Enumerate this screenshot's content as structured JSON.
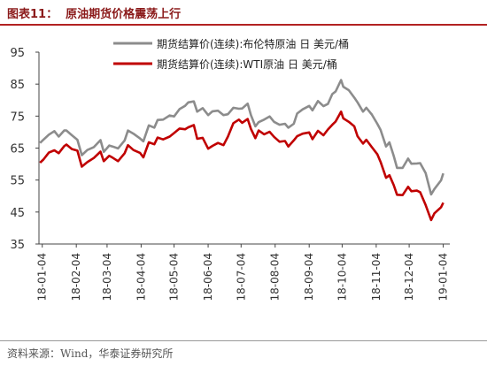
{
  "header": {
    "figure_label": "图表11：",
    "title": "原油期货价格震荡上行"
  },
  "footer": {
    "source": "资料来源：Wind，华泰证券研究所"
  },
  "colors": {
    "brent": "#8c8c8c",
    "wti": "#c00000",
    "title": "#8b1a1a",
    "rule": "#b22222"
  },
  "chart_data": {
    "type": "line",
    "title": "",
    "xlabel": "",
    "ylabel": "",
    "ylim": [
      35,
      95
    ],
    "yticks": [
      35,
      45,
      55,
      65,
      75,
      85,
      95
    ],
    "xlim": [
      "2018-01-01",
      "2019-01-10"
    ],
    "xticks": [
      {
        "date": "2018-01-04",
        "label": "18-01-04"
      },
      {
        "date": "2018-02-04",
        "label": "18-02-04"
      },
      {
        "date": "2018-03-04",
        "label": "18-03-04"
      },
      {
        "date": "2018-04-04",
        "label": "18-04-04"
      },
      {
        "date": "2018-05-04",
        "label": "18-05-04"
      },
      {
        "date": "2018-06-04",
        "label": "18-06-04"
      },
      {
        "date": "2018-07-04",
        "label": "18-07-04"
      },
      {
        "date": "2018-08-04",
        "label": "18-08-04"
      },
      {
        "date": "2018-09-04",
        "label": "18-09-04"
      },
      {
        "date": "2018-10-04",
        "label": "18-10-04"
      },
      {
        "date": "2018-11-04",
        "label": "18-11-04"
      },
      {
        "date": "2018-12-04",
        "label": "18-12-04"
      },
      {
        "date": "2019-01-04",
        "label": "19-01-04"
      }
    ],
    "grid": false,
    "legend_position": "top",
    "series": [
      {
        "name": "期货结算价(连续):布伦特原油 日 美元/桶",
        "points": [
          [
            "2018-01-02",
            66.6
          ],
          [
            "2018-01-05",
            67.6
          ],
          [
            "2018-01-10",
            69.2
          ],
          [
            "2018-01-15",
            70.3
          ],
          [
            "2018-01-19",
            68.6
          ],
          [
            "2018-01-24",
            70.5
          ],
          [
            "2018-01-26",
            70.5
          ],
          [
            "2018-01-31",
            69.0
          ],
          [
            "2018-02-05",
            67.6
          ],
          [
            "2018-02-09",
            62.8
          ],
          [
            "2018-02-14",
            64.4
          ],
          [
            "2018-02-20",
            65.3
          ],
          [
            "2018-02-26",
            67.5
          ],
          [
            "2018-03-01",
            63.8
          ],
          [
            "2018-03-06",
            65.8
          ],
          [
            "2018-03-09",
            65.5
          ],
          [
            "2018-03-14",
            64.9
          ],
          [
            "2018-03-20",
            67.4
          ],
          [
            "2018-03-23",
            70.5
          ],
          [
            "2018-03-28",
            69.5
          ],
          [
            "2018-04-03",
            68.0
          ],
          [
            "2018-04-06",
            67.1
          ],
          [
            "2018-04-11",
            72.1
          ],
          [
            "2018-04-16",
            71.4
          ],
          [
            "2018-04-19",
            73.8
          ],
          [
            "2018-04-24",
            73.9
          ],
          [
            "2018-04-30",
            75.2
          ],
          [
            "2018-05-04",
            74.9
          ],
          [
            "2018-05-09",
            77.2
          ],
          [
            "2018-05-14",
            78.2
          ],
          [
            "2018-05-17",
            79.3
          ],
          [
            "2018-05-22",
            79.6
          ],
          [
            "2018-05-25",
            76.4
          ],
          [
            "2018-05-30",
            77.5
          ],
          [
            "2018-06-04",
            75.3
          ],
          [
            "2018-06-08",
            76.5
          ],
          [
            "2018-06-13",
            76.7
          ],
          [
            "2018-06-18",
            75.3
          ],
          [
            "2018-06-22",
            75.6
          ],
          [
            "2018-06-27",
            77.6
          ],
          [
            "2018-07-02",
            77.3
          ],
          [
            "2018-07-05",
            77.4
          ],
          [
            "2018-07-10",
            78.9
          ],
          [
            "2018-07-13",
            75.3
          ],
          [
            "2018-07-17",
            71.8
          ],
          [
            "2018-07-20",
            73.1
          ],
          [
            "2018-07-25",
            73.9
          ],
          [
            "2018-07-30",
            74.9
          ],
          [
            "2018-08-03",
            73.2
          ],
          [
            "2018-08-08",
            72.3
          ],
          [
            "2018-08-13",
            72.6
          ],
          [
            "2018-08-16",
            71.4
          ],
          [
            "2018-08-21",
            72.6
          ],
          [
            "2018-08-24",
            75.8
          ],
          [
            "2018-08-29",
            77.1
          ],
          [
            "2018-09-04",
            78.2
          ],
          [
            "2018-09-07",
            76.8
          ],
          [
            "2018-09-12",
            79.7
          ],
          [
            "2018-09-17",
            78.1
          ],
          [
            "2018-09-21",
            78.8
          ],
          [
            "2018-09-25",
            81.9
          ],
          [
            "2018-09-28",
            82.7
          ],
          [
            "2018-10-03",
            86.3
          ],
          [
            "2018-10-05",
            84.2
          ],
          [
            "2018-10-10",
            83.1
          ],
          [
            "2018-10-15",
            80.8
          ],
          [
            "2018-10-18",
            79.3
          ],
          [
            "2018-10-23",
            76.4
          ],
          [
            "2018-10-26",
            77.6
          ],
          [
            "2018-10-31",
            75.5
          ],
          [
            "2018-11-05",
            72.6
          ],
          [
            "2018-11-08",
            70.7
          ],
          [
            "2018-11-13",
            65.5
          ],
          [
            "2018-11-16",
            66.8
          ],
          [
            "2018-11-20",
            62.5
          ],
          [
            "2018-11-23",
            58.8
          ],
          [
            "2018-11-28",
            58.8
          ],
          [
            "2018-12-03",
            61.7
          ],
          [
            "2018-12-06",
            60.1
          ],
          [
            "2018-12-11",
            60.2
          ],
          [
            "2018-12-14",
            60.3
          ],
          [
            "2018-12-19",
            57.2
          ],
          [
            "2018-12-24",
            50.5
          ],
          [
            "2018-12-27",
            52.2
          ],
          [
            "2019-01-02",
            54.9
          ],
          [
            "2019-01-04",
            57.1
          ]
        ]
      },
      {
        "name": "期货结算价(连续):WTI原油 日 美元/桶",
        "points": [
          [
            "2018-01-02",
            60.4
          ],
          [
            "2018-01-05",
            61.4
          ],
          [
            "2018-01-10",
            63.6
          ],
          [
            "2018-01-15",
            64.3
          ],
          [
            "2018-01-19",
            63.4
          ],
          [
            "2018-01-24",
            65.6
          ],
          [
            "2018-01-26",
            66.1
          ],
          [
            "2018-01-31",
            64.7
          ],
          [
            "2018-02-05",
            64.2
          ],
          [
            "2018-02-09",
            59.2
          ],
          [
            "2018-02-14",
            60.6
          ],
          [
            "2018-02-20",
            61.9
          ],
          [
            "2018-02-26",
            63.9
          ],
          [
            "2018-03-01",
            60.9
          ],
          [
            "2018-03-06",
            62.6
          ],
          [
            "2018-03-09",
            62.0
          ],
          [
            "2018-03-14",
            60.9
          ],
          [
            "2018-03-20",
            63.4
          ],
          [
            "2018-03-23",
            65.9
          ],
          [
            "2018-03-28",
            64.4
          ],
          [
            "2018-04-03",
            63.5
          ],
          [
            "2018-04-06",
            62.1
          ],
          [
            "2018-04-11",
            66.8
          ],
          [
            "2018-04-16",
            66.2
          ],
          [
            "2018-04-19",
            68.3
          ],
          [
            "2018-04-24",
            67.7
          ],
          [
            "2018-04-30",
            68.6
          ],
          [
            "2018-05-04",
            69.7
          ],
          [
            "2018-05-09",
            71.1
          ],
          [
            "2018-05-14",
            70.9
          ],
          [
            "2018-05-17",
            71.5
          ],
          [
            "2018-05-22",
            72.2
          ],
          [
            "2018-05-25",
            67.9
          ],
          [
            "2018-05-30",
            68.2
          ],
          [
            "2018-06-04",
            64.8
          ],
          [
            "2018-06-08",
            65.7
          ],
          [
            "2018-06-13",
            66.6
          ],
          [
            "2018-06-18",
            65.9
          ],
          [
            "2018-06-22",
            68.6
          ],
          [
            "2018-06-27",
            72.8
          ],
          [
            "2018-07-02",
            73.9
          ],
          [
            "2018-07-05",
            72.9
          ],
          [
            "2018-07-10",
            74.1
          ],
          [
            "2018-07-13",
            71.0
          ],
          [
            "2018-07-17",
            68.1
          ],
          [
            "2018-07-20",
            70.5
          ],
          [
            "2018-07-25",
            69.3
          ],
          [
            "2018-07-30",
            70.1
          ],
          [
            "2018-08-03",
            68.5
          ],
          [
            "2018-08-08",
            67.0
          ],
          [
            "2018-08-13",
            67.2
          ],
          [
            "2018-08-16",
            65.5
          ],
          [
            "2018-08-21",
            67.4
          ],
          [
            "2018-08-24",
            68.7
          ],
          [
            "2018-08-29",
            69.5
          ],
          [
            "2018-09-04",
            69.9
          ],
          [
            "2018-09-07",
            67.8
          ],
          [
            "2018-09-12",
            70.4
          ],
          [
            "2018-09-17",
            69.0
          ],
          [
            "2018-09-21",
            70.8
          ],
          [
            "2018-09-25",
            72.3
          ],
          [
            "2018-09-28",
            73.3
          ],
          [
            "2018-10-03",
            76.4
          ],
          [
            "2018-10-05",
            74.3
          ],
          [
            "2018-10-10",
            73.2
          ],
          [
            "2018-10-15",
            71.8
          ],
          [
            "2018-10-18",
            68.7
          ],
          [
            "2018-10-23",
            66.4
          ],
          [
            "2018-10-26",
            67.6
          ],
          [
            "2018-10-31",
            65.3
          ],
          [
            "2018-11-05",
            63.1
          ],
          [
            "2018-11-08",
            60.7
          ],
          [
            "2018-11-13",
            55.7
          ],
          [
            "2018-11-16",
            56.5
          ],
          [
            "2018-11-20",
            53.4
          ],
          [
            "2018-11-23",
            50.4
          ],
          [
            "2018-11-28",
            50.3
          ],
          [
            "2018-12-03",
            52.9
          ],
          [
            "2018-12-06",
            51.5
          ],
          [
            "2018-12-11",
            51.7
          ],
          [
            "2018-12-14",
            51.2
          ],
          [
            "2018-12-19",
            47.2
          ],
          [
            "2018-12-24",
            42.5
          ],
          [
            "2018-12-27",
            44.6
          ],
          [
            "2019-01-02",
            46.5
          ],
          [
            "2019-01-04",
            47.9
          ]
        ]
      }
    ]
  }
}
